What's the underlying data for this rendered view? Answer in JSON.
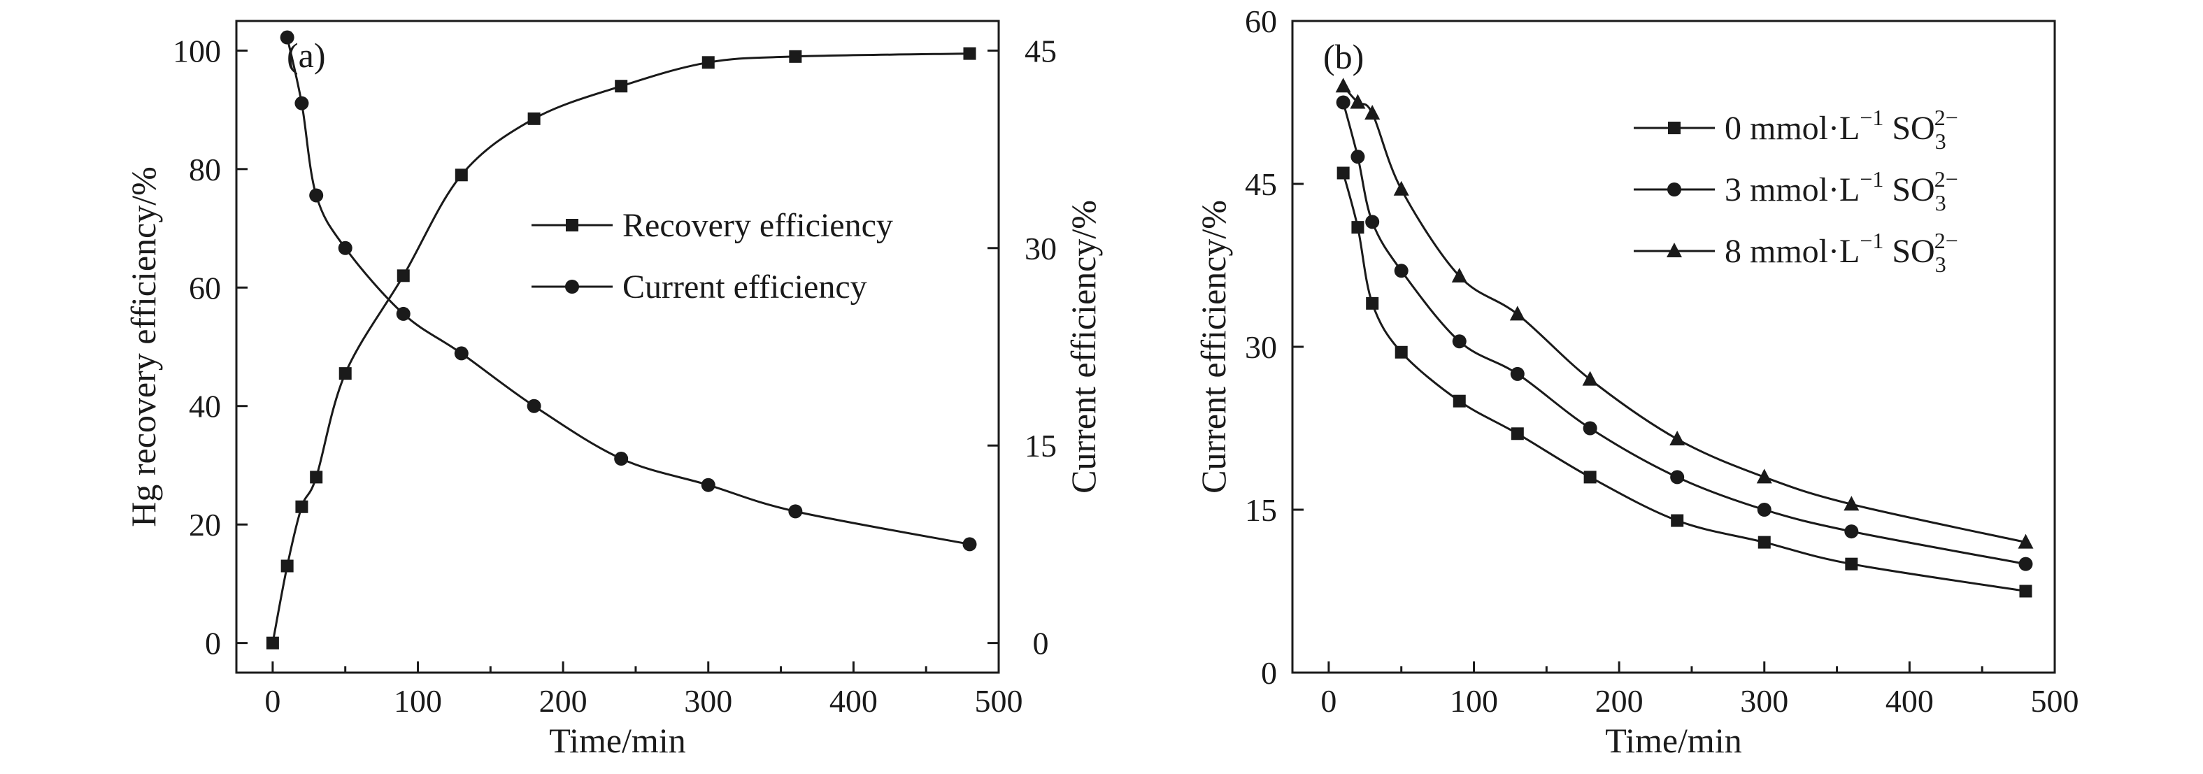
{
  "colors": {
    "ink": "#1a1a1a",
    "background": "#ffffff"
  },
  "chart_data": [
    {
      "type": "line",
      "panel_label": "(a)",
      "xlabel": "Time/min",
      "ylabel": "Hg recovery efficiency/%",
      "y2label": "Current efficiency/%",
      "xlim": [
        -25,
        500
      ],
      "ylim": [
        -5,
        105
      ],
      "y2lim": [
        -2.25,
        47.25
      ],
      "xticks": [
        "0",
        "100",
        "200",
        "300",
        "400",
        "500"
      ],
      "yticks": [
        "0",
        "20",
        "40",
        "60",
        "80",
        "100"
      ],
      "y2ticks": [
        "0",
        "15",
        "30",
        "45"
      ],
      "legend_position": "center-right",
      "grid": false,
      "series": [
        {
          "name": "Recovery efficiency",
          "axis": "left",
          "marker": "square",
          "x": [
            0,
            10,
            20,
            30,
            50,
            90,
            130,
            180,
            240,
            300,
            360,
            480
          ],
          "values": [
            0,
            13,
            23,
            28,
            45.5,
            62,
            79,
            88.5,
            94,
            98,
            99,
            99.5
          ]
        },
        {
          "name": "Current efficiency",
          "axis": "right",
          "marker": "circle",
          "x": [
            10,
            20,
            30,
            50,
            90,
            130,
            180,
            240,
            300,
            360,
            480
          ],
          "values": [
            46,
            41,
            34,
            30,
            25,
            22,
            18,
            14,
            12,
            10,
            7.5
          ]
        }
      ]
    },
    {
      "type": "line",
      "panel_label": "(b)",
      "xlabel": "Time/min",
      "ylabel": "Current efficiency/%",
      "xlim": [
        -25,
        500
      ],
      "ylim": [
        0,
        60
      ],
      "xticks": [
        "0",
        "100",
        "200",
        "300",
        "400",
        "500"
      ],
      "yticks": [
        "0",
        "15",
        "30",
        "45",
        "60"
      ],
      "legend_position": "top-right",
      "grid": false,
      "series": [
        {
          "name": "0 mmol·L⁻¹ SO₃²⁻",
          "marker": "square",
          "x": [
            10,
            20,
            30,
            50,
            90,
            130,
            180,
            240,
            300,
            360,
            480
          ],
          "values": [
            46,
            41,
            34,
            29.5,
            25,
            22,
            18,
            14,
            12,
            10,
            7.5
          ]
        },
        {
          "name": "3 mmol·L⁻¹ SO₃²⁻",
          "marker": "circle",
          "x": [
            10,
            20,
            30,
            50,
            90,
            130,
            180,
            240,
            300,
            360,
            480
          ],
          "values": [
            52.5,
            47.5,
            41.5,
            37,
            30.5,
            27.5,
            22.5,
            18,
            15,
            13,
            10
          ]
        },
        {
          "name": "8 mmol·L⁻¹ SO₃²⁻",
          "marker": "triangle",
          "x": [
            10,
            20,
            30,
            50,
            90,
            130,
            180,
            240,
            300,
            360,
            480
          ],
          "values": [
            54,
            52.5,
            51.5,
            44.5,
            36.5,
            33,
            27,
            21.5,
            18,
            15.5,
            12
          ]
        }
      ]
    }
  ]
}
